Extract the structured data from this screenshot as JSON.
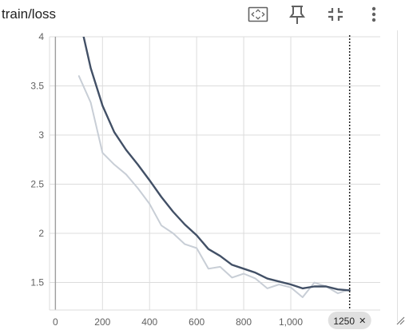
{
  "card": {
    "title": "train/loss",
    "toolbar": [
      {
        "name": "fit-domain-icon",
        "label": "fit-to-data"
      },
      {
        "name": "pin-icon",
        "label": "pin"
      },
      {
        "name": "collapse-icon",
        "label": "collapse"
      },
      {
        "name": "more-vert-icon",
        "label": "more"
      }
    ]
  },
  "colors": {
    "grid": "#dcdcdc",
    "axis": "#9e9e9e",
    "main_series": "#425066",
    "raw_series": "#c8ced6",
    "tick_text": "#616161",
    "cursor_badge_bg": "#e0e0e0"
  },
  "chart_data": {
    "type": "line",
    "title": "train/loss",
    "xlabel": "",
    "ylabel": "",
    "xlim": [
      -25,
      1380
    ],
    "ylim": [
      1.22,
      4.0
    ],
    "grid": true,
    "x_ticks": [
      0,
      200,
      400,
      600,
      800,
      1000
    ],
    "x_tick_labels": [
      "0",
      "200",
      "400",
      "600",
      "800",
      "1,000"
    ],
    "y_ticks": [
      1.5,
      2,
      2.5,
      3,
      3.5,
      4
    ],
    "y_tick_labels": [
      "1.5",
      "2",
      "2.5",
      "3",
      "3.5",
      "4"
    ],
    "cursor": {
      "x": 1250,
      "label": "1250",
      "close_glyph": "✕"
    },
    "series": [
      {
        "role": "smoothed",
        "x": [
          120,
          150,
          200,
          250,
          300,
          350,
          400,
          450,
          500,
          550,
          600,
          650,
          700,
          750,
          800,
          850,
          900,
          950,
          1000,
          1050,
          1100,
          1150,
          1200,
          1250
        ],
        "values": [
          4.0,
          3.68,
          3.3,
          3.03,
          2.85,
          2.7,
          2.54,
          2.37,
          2.22,
          2.09,
          1.98,
          1.84,
          1.77,
          1.68,
          1.64,
          1.6,
          1.54,
          1.51,
          1.48,
          1.44,
          1.46,
          1.46,
          1.43,
          1.42
        ]
      },
      {
        "role": "raw",
        "x": [
          100,
          150,
          200,
          250,
          300,
          350,
          400,
          450,
          500,
          550,
          600,
          650,
          700,
          750,
          800,
          850,
          900,
          950,
          1000,
          1050,
          1100,
          1150,
          1200,
          1250
        ],
        "values": [
          3.6,
          3.33,
          2.82,
          2.7,
          2.6,
          2.46,
          2.3,
          2.08,
          2.0,
          1.89,
          1.85,
          1.64,
          1.66,
          1.55,
          1.59,
          1.54,
          1.44,
          1.48,
          1.45,
          1.35,
          1.5,
          1.46,
          1.39,
          1.43
        ]
      }
    ]
  }
}
